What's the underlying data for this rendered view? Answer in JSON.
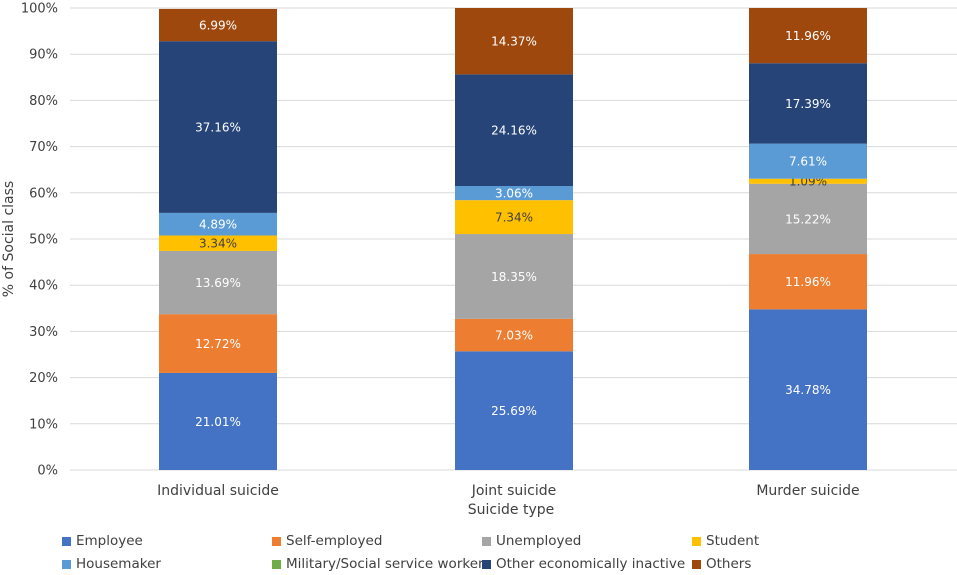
{
  "chart_data": {
    "type": "bar",
    "stacked": true,
    "percent": true,
    "title": "",
    "xlabel": "Suicide type",
    "ylabel": "% of Social class",
    "ylim": [
      0,
      100
    ],
    "yticks": [
      "0%",
      "10%",
      "20%",
      "30%",
      "40%",
      "50%",
      "60%",
      "70%",
      "80%",
      "90%",
      "100%"
    ],
    "categories": [
      "Individual suicide",
      "Joint suicide",
      "Murder suicide"
    ],
    "legend_position": "bottom",
    "series": [
      {
        "name": "Employee",
        "color": "#4472c4",
        "label_color": "#ffffff",
        "values": [
          21.01,
          25.69,
          34.78
        ],
        "labels": [
          "21.01%",
          "25.69%",
          "34.78%"
        ]
      },
      {
        "name": "Self-employed",
        "color": "#ed7d31",
        "label_color": "#ffffff",
        "values": [
          12.72,
          7.03,
          11.96
        ],
        "labels": [
          "12.72%",
          "7.03%",
          "11.96%"
        ]
      },
      {
        "name": "Unemployed",
        "color": "#a5a5a5",
        "label_color": "#ffffff",
        "values": [
          13.69,
          18.35,
          15.22
        ],
        "labels": [
          "13.69%",
          "18.35%",
          "15.22%"
        ]
      },
      {
        "name": "Student",
        "color": "#ffc000",
        "label_color": "#404040",
        "values": [
          3.34,
          7.34,
          1.09
        ],
        "labels": [
          "3.34%",
          "7.34%",
          "1.09%"
        ]
      },
      {
        "name": "Housemaker",
        "color": "#5b9bd5",
        "label_color": "#ffffff",
        "values": [
          4.89,
          3.06,
          7.61
        ],
        "labels": [
          "4.89%",
          "3.06%",
          "7.61%"
        ]
      },
      {
        "name": "Military/Social service worker",
        "color": "#70ad47",
        "label_color": "#ffffff",
        "values": [
          0,
          0,
          0
        ],
        "labels": [
          "",
          "",
          ""
        ]
      },
      {
        "name": "Other economically inactive",
        "color": "#264478",
        "label_color": "#ffffff",
        "values": [
          37.16,
          24.16,
          17.39
        ],
        "labels": [
          "37.16%",
          "24.16%",
          "17.39%"
        ]
      },
      {
        "name": "Others",
        "color": "#9e480e",
        "label_color": "#ffffff",
        "values": [
          6.99,
          14.37,
          11.96
        ],
        "labels": [
          "6.99%",
          "14.37%",
          "11.96%"
        ]
      }
    ]
  }
}
